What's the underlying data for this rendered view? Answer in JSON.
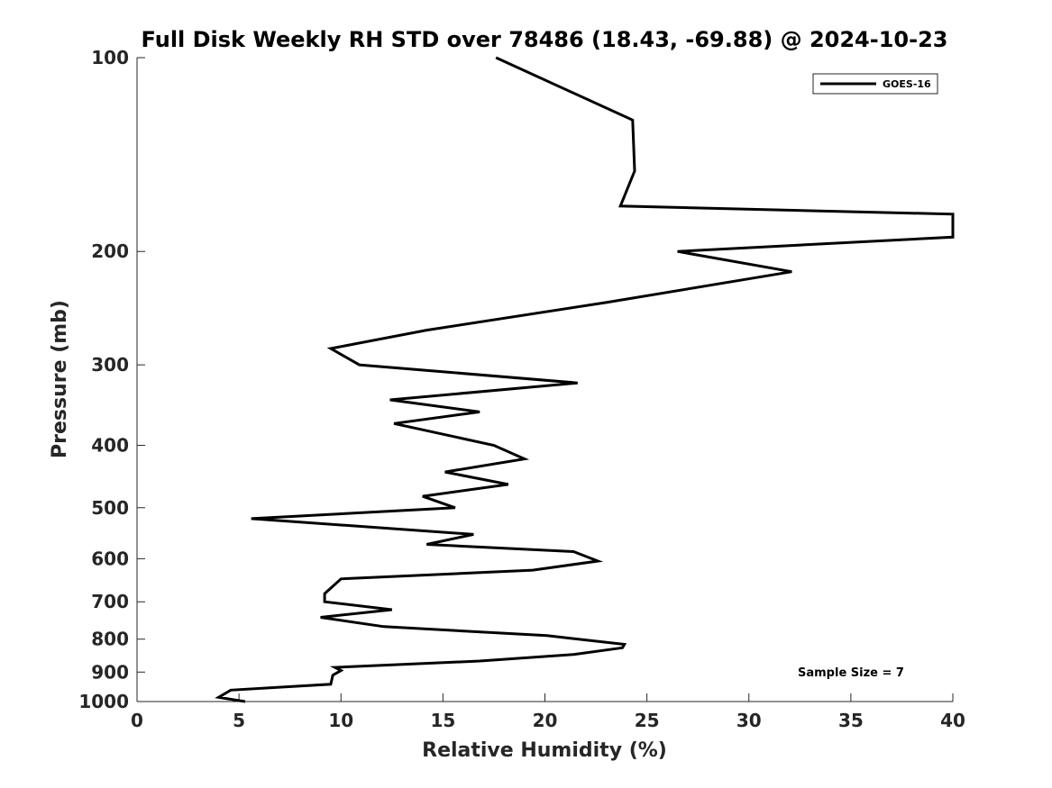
{
  "chart_data": {
    "type": "line",
    "title": "Full Disk Weekly RH STD over 78486 (18.43, -69.88) @ 2024-10-23",
    "xlabel": "Relative Humidity (%)",
    "ylabel": "Pressure (mb)",
    "xlim": [
      0,
      40
    ],
    "ylim": [
      100,
      1000
    ],
    "yscale": "log",
    "xticks": [
      0,
      5,
      10,
      15,
      20,
      25,
      30,
      35,
      40
    ],
    "yticks": [
      100,
      200,
      300,
      400,
      500,
      600,
      700,
      800,
      900,
      1000
    ],
    "grid": false,
    "legend_position": "top-right",
    "annotation": "Sample Size = 7",
    "series": [
      {
        "name": "GOES-16",
        "color": "#000000",
        "x": [
          17.6,
          24.3,
          24.4,
          23.7,
          40.0,
          40.0,
          26.5,
          32.1,
          23.0,
          14.2,
          9.5,
          10.9,
          21.6,
          12.4,
          16.8,
          12.6,
          17.5,
          19.0,
          15.1,
          18.2,
          14.0,
          15.6,
          5.6,
          16.5,
          14.2,
          21.4,
          22.6,
          19.4,
          10.0,
          9.2,
          9.2,
          12.5,
          9.0,
          12.1,
          20.1,
          23.9,
          23.8,
          21.4,
          16.8,
          9.7,
          10.0,
          9.6,
          9.5,
          4.6,
          4.0,
          5.3
        ],
        "y": [
          100,
          125,
          150,
          170,
          175,
          190,
          200,
          215,
          240,
          265,
          283,
          300,
          320,
          340,
          355,
          370,
          400,
          420,
          440,
          460,
          480,
          500,
          520,
          550,
          570,
          585,
          605,
          625,
          645,
          680,
          700,
          720,
          740,
          765,
          790,
          815,
          825,
          845,
          865,
          885,
          895,
          910,
          940,
          960,
          985,
          1000
        ]
      }
    ]
  }
}
